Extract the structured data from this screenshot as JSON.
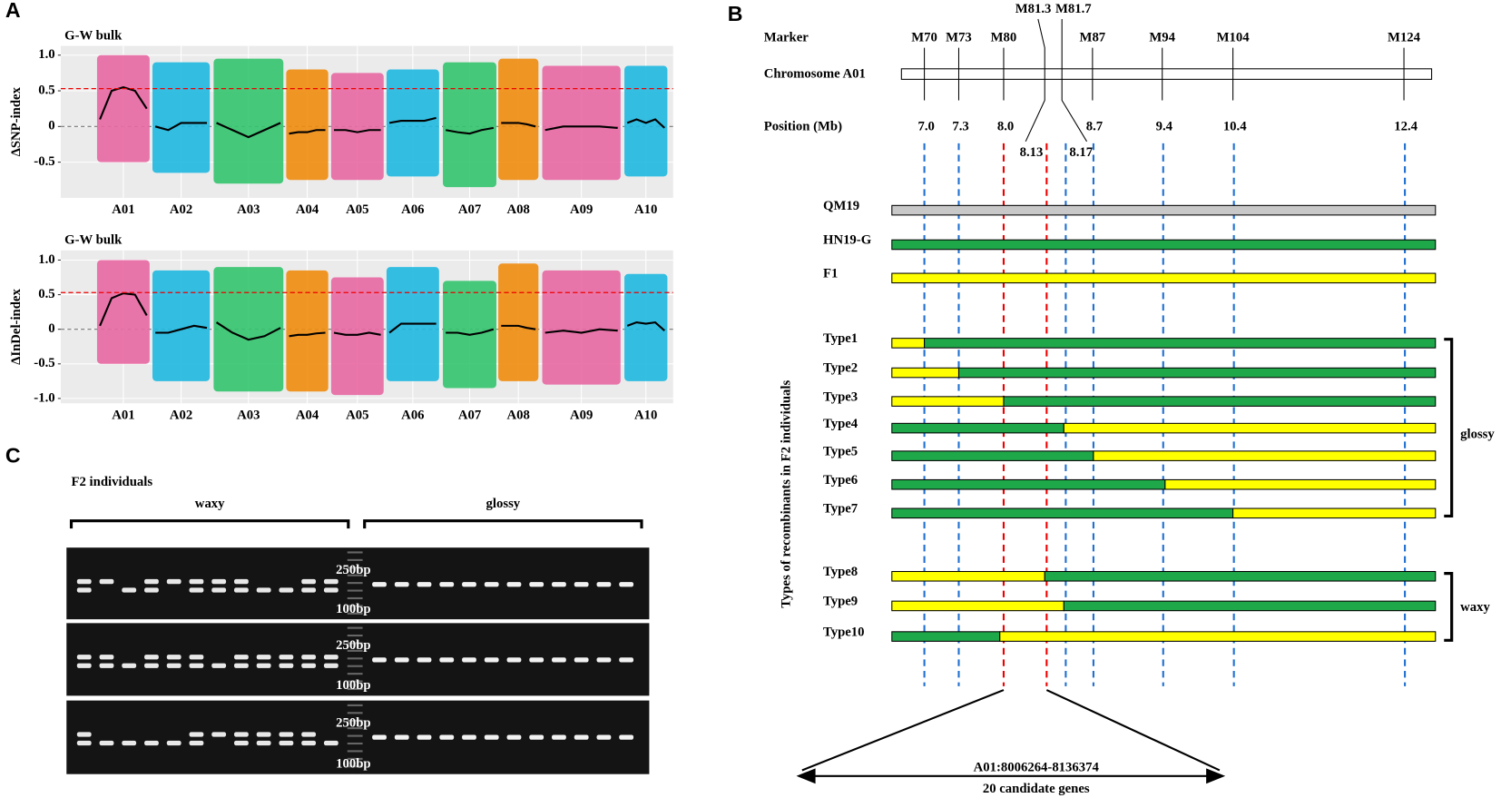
{
  "panel_labels": [
    "A",
    "B",
    "C"
  ],
  "chart_data": [
    {
      "type": "scatter",
      "title": "G-W bulk",
      "y_label": "ΔSNP-index",
      "categories": [
        "A01",
        "A02",
        "A03",
        "A04",
        "A05",
        "A06",
        "A07",
        "A08",
        "A09",
        "A10"
      ],
      "colors": [
        "#e868a2",
        "#1fb8e0",
        "#33c46e",
        "#f08c0e",
        "#e868a2",
        "#1fb8e0",
        "#33c46e",
        "#f08c0e",
        "#e868a2",
        "#1fb8e0"
      ],
      "max": [
        1.0,
        0.9,
        0.95,
        0.8,
        0.75,
        0.8,
        0.9,
        0.95,
        0.85,
        0.85
      ],
      "min": [
        -0.5,
        -0.65,
        -0.8,
        -0.75,
        -0.75,
        -0.7,
        -0.85,
        -0.75,
        -0.75,
        -0.7
      ],
      "trend": [
        [
          0.1,
          0.5,
          0.55,
          0.5,
          0.25
        ],
        [
          0,
          -0.05,
          0.05,
          0.05,
          0.05
        ],
        [
          0.05,
          -0.05,
          -0.15,
          -0.05,
          0.05
        ],
        [
          -0.1,
          -0.08,
          -0.08,
          -0.05,
          -0.05
        ],
        [
          -0.05,
          -0.05,
          -0.08,
          -0.05,
          -0.05
        ],
        [
          0.05,
          0.08,
          0.08,
          0.08,
          0.12
        ],
        [
          -0.05,
          -0.08,
          -0.1,
          -0.05,
          -0.02
        ],
        [
          0.05,
          0.05,
          0.05,
          0.03,
          0
        ],
        [
          -0.05,
          0,
          0,
          0,
          -0.02
        ],
        [
          0.05,
          0.1,
          0.05,
          0.1,
          -0.02
        ]
      ],
      "threshold": 0.53,
      "ylim": [
        -1.0,
        1.13
      ],
      "yticks": [
        -0.5,
        0,
        0.5,
        {
          "value": 1.0,
          "label": "1.0"
        }
      ],
      "grid": true
    },
    {
      "type": "scatter",
      "title": "G-W bulk",
      "y_label": "ΔInDel-index",
      "categories": [
        "A01",
        "A02",
        "A03",
        "A04",
        "A05",
        "A06",
        "A07",
        "A08",
        "A09",
        "A10"
      ],
      "colors": [
        "#e868a2",
        "#1fb8e0",
        "#33c46e",
        "#f08c0e",
        "#e868a2",
        "#1fb8e0",
        "#33c46e",
        "#f08c0e",
        "#e868a2",
        "#1fb8e0"
      ],
      "max": [
        1.0,
        0.85,
        0.9,
        0.85,
        0.75,
        0.9,
        0.7,
        0.95,
        0.85,
        0.8
      ],
      "min": [
        -0.5,
        -0.75,
        -0.9,
        -0.9,
        -0.95,
        -0.75,
        -0.85,
        -0.75,
        -0.8,
        -0.75
      ],
      "trend": [
        [
          0.05,
          0.45,
          0.52,
          0.5,
          0.2
        ],
        [
          -0.05,
          -0.05,
          0,
          0.05,
          0.02
        ],
        [
          0.1,
          -0.05,
          -0.15,
          -0.1,
          0.02
        ],
        [
          -0.1,
          -0.08,
          -0.08,
          -0.06,
          -0.05
        ],
        [
          -0.05,
          -0.08,
          -0.08,
          -0.05,
          -0.08
        ],
        [
          -0.05,
          0.08,
          0.08,
          0.08,
          0.08
        ],
        [
          -0.05,
          -0.05,
          -0.08,
          -0.05,
          0
        ],
        [
          0.05,
          0.05,
          0.05,
          0.02,
          0
        ],
        [
          -0.05,
          -0.02,
          -0.05,
          0,
          -0.02
        ],
        [
          0.05,
          0.1,
          0.08,
          0.1,
          -0.02
        ]
      ],
      "threshold": 0.53,
      "ylim": [
        -1.07,
        1.14
      ],
      "yticks": [
        {
          "value": -1.0,
          "label": "-1.0"
        },
        -0.5,
        0,
        0.5,
        {
          "value": 1.0,
          "label": "1.0"
        }
      ],
      "grid": true
    }
  ],
  "panel_b": {
    "marker_header": "Marker",
    "chromosome_label": "Chromosome A01",
    "position_header": "Position (Mb)",
    "markers": [
      {
        "name": "M70",
        "position": "7.0"
      },
      {
        "name": "M73",
        "position": "7.3"
      },
      {
        "name": "M80",
        "position": "8.0"
      },
      {
        "name": "M81.3",
        "position": "8.13"
      },
      {
        "name": "M81.7",
        "position": "8.17"
      },
      {
        "name": "M87",
        "position": "8.7"
      },
      {
        "name": "M94",
        "position": "9.4"
      },
      {
        "name": "M104",
        "position": "10.4"
      },
      {
        "name": "M124",
        "position": "12.4"
      }
    ],
    "rows": [
      {
        "label": "QM19",
        "colors": [
          "#c8c8c8"
        ]
      },
      {
        "label": "HN19-G",
        "colors": [
          "#1fa84a"
        ]
      },
      {
        "label": "F1",
        "colors": [
          "#ffff00"
        ]
      },
      {
        "label": "Type1",
        "colors": [
          "#ffff00",
          "#1fa84a"
        ]
      },
      {
        "label": "Type2",
        "colors": [
          "#ffff00",
          "#1fa84a"
        ]
      },
      {
        "label": "Type3",
        "colors": [
          "#ffff00",
          "#1fa84a"
        ]
      },
      {
        "label": "Type4",
        "colors": [
          "#1fa84a",
          "#ffff00"
        ]
      },
      {
        "label": "Type5",
        "colors": [
          "#1fa84a",
          "#ffff00"
        ]
      },
      {
        "label": "Type6",
        "colors": [
          "#1fa84a",
          "#ffff00"
        ]
      },
      {
        "label": "Type7",
        "colors": [
          "#1fa84a",
          "#ffff00"
        ]
      },
      {
        "label": "Type8",
        "colors": [
          "#ffff00",
          "#1fa84a"
        ]
      },
      {
        "label": "Type9",
        "colors": [
          "#ffff00",
          "#1fa84a"
        ]
      },
      {
        "label": "Type10",
        "colors": [
          "#1fa84a",
          "#ffff00"
        ]
      }
    ],
    "group_axis_label": "Types of recombinants in F2 individuals",
    "groups": [
      "glossy",
      "waxy"
    ],
    "region": "A01:8006264-8136374",
    "genes": "20 candidate genes"
  },
  "panel_c": {
    "title": "F2 individuals",
    "groups": [
      "waxy",
      "glossy"
    ],
    "gels": [
      {
        "upper": "250bp",
        "lower": "100bp"
      },
      {
        "upper": "250bp",
        "lower": "100bp"
      },
      {
        "upper": "250bp",
        "lower": "100bp"
      }
    ]
  }
}
